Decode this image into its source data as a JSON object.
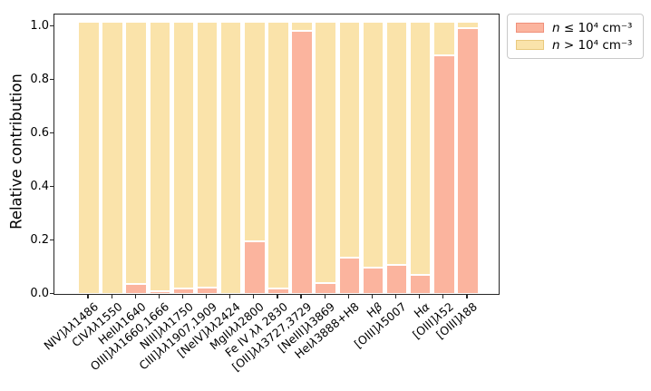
{
  "chart_data": {
    "type": "bar",
    "stacked": true,
    "title": "",
    "xlabel": "",
    "ylabel": "Relative contribution",
    "ylim": [
      0,
      1.05
    ],
    "grid": false,
    "bar_edge_color": "#ffffff",
    "legend_position": "outside-upper-right",
    "ytick_labels": [
      "0.0",
      "0.2",
      "0.4",
      "0.6",
      "0.8",
      "1.0"
    ],
    "yticks": [
      0.0,
      0.2,
      0.4,
      0.6,
      0.8,
      1.0
    ],
    "categories": [
      "NIV]λλ1486",
      "CIVλλ1550",
      "HeIIλ1640",
      "OIII]λλ1660,1666",
      "NIII]λλ1750",
      "CIII]λλ1907,1909",
      "[NeIV]λλ2424",
      "MgIIλλ2800",
      "Fe IV λλ 2830",
      "[OII]λλ3727,3729",
      "[NeIII]λ3869",
      "HeIλ3888+H8",
      "Hβ",
      "[OIII]λ5007",
      "Hα",
      "[OIII]λ52",
      "[OIII]λ88"
    ],
    "series": [
      {
        "key": "low_density",
        "name": "n ≤ 10⁴ cm⁻³",
        "color": "#FBB49E",
        "values": [
          0.0,
          0.0,
          0.035,
          0.008,
          0.018,
          0.022,
          0.0,
          0.195,
          0.018,
          0.98,
          0.04,
          0.135,
          0.095,
          0.105,
          0.07,
          0.89,
          0.99
        ]
      },
      {
        "key": "high_density",
        "name": "n > 10⁴ cm⁻³",
        "color": "#FAE3AA",
        "values": [
          1.0,
          1.0,
          0.965,
          0.992,
          0.982,
          0.978,
          1.0,
          0.805,
          0.982,
          0.02,
          0.96,
          0.865,
          0.905,
          0.895,
          0.93,
          0.11,
          0.01
        ]
      }
    ]
  },
  "legend": {
    "items": [
      {
        "series_key": "low_density",
        "symbol": "n",
        "relation": "≤",
        "value_text": "10⁴ cm⁻³",
        "fill": "#FBB49E",
        "border": "#F0907B"
      },
      {
        "series_key": "high_density",
        "symbol": "n",
        "relation": ">",
        "value_text": "10⁴ cm⁻³",
        "fill": "#FAE3AA",
        "border": "#E9C97E"
      }
    ]
  },
  "colors": {
    "axis": "#262626",
    "text": "#000000",
    "background": "#ffffff",
    "low_density_fill": "#FBB49E",
    "high_density_fill": "#FAE3AA"
  }
}
